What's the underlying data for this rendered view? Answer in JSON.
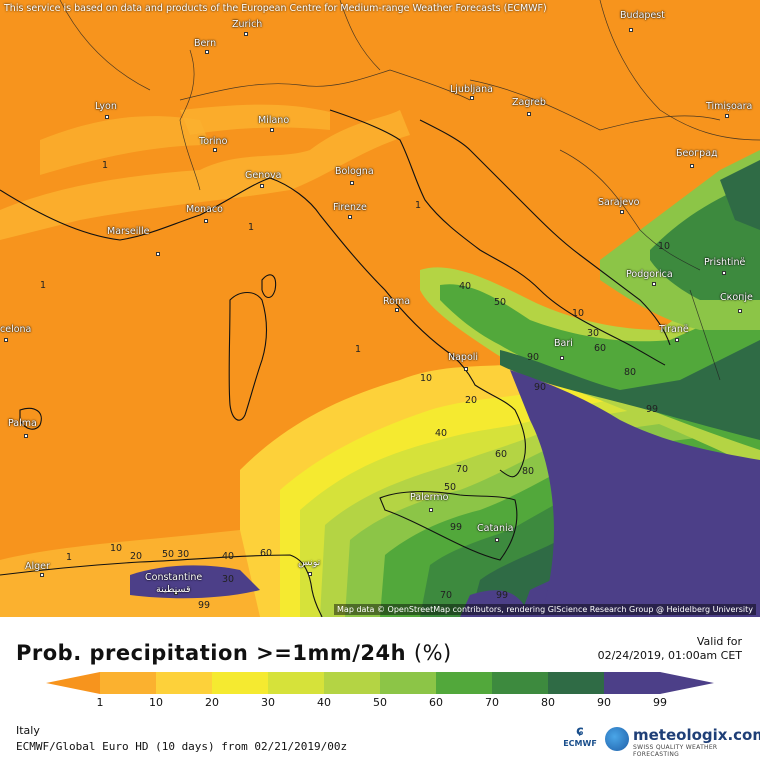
{
  "map": {
    "disclaimer": "This service is based on data and products of the European Centre for Medium-range Weather Forecasts (ECMWF)",
    "attribution": "Map data © OpenStreetMap contributors, rendering GIScience Research Group @ Heidelberg University",
    "cities": [
      {
        "name": "Budapest",
        "id": "budapest"
      },
      {
        "name": "Bern",
        "id": "bern"
      },
      {
        "name": "Zurich",
        "id": "zurich"
      },
      {
        "name": "Ljubljana",
        "id": "ljubljana"
      },
      {
        "name": "Zagreb",
        "id": "zagreb"
      },
      {
        "name": "Lyon",
        "id": "lyon"
      },
      {
        "name": "Milano",
        "id": "milano"
      },
      {
        "name": "Timișoara",
        "id": "timisoara"
      },
      {
        "name": "Torino",
        "id": "torino"
      },
      {
        "name": "Београд",
        "id": "beograd"
      },
      {
        "name": "Genova",
        "id": "genova"
      },
      {
        "name": "Bologna",
        "id": "bologna"
      },
      {
        "name": "Sarajevo",
        "id": "sarajevo"
      },
      {
        "name": "Monaco",
        "id": "monaco"
      },
      {
        "name": "Firenze",
        "id": "firenze"
      },
      {
        "name": "Marseille",
        "id": "marseille"
      },
      {
        "name": "Podgorica",
        "id": "podgorica"
      },
      {
        "name": "Prishtinë",
        "id": "prishtine"
      },
      {
        "name": "Скопје",
        "id": "skopje"
      },
      {
        "name": "Roma",
        "id": "roma"
      },
      {
        "name": "celona",
        "id": "barcelona"
      },
      {
        "name": "Tiranë",
        "id": "tirane"
      },
      {
        "name": "Bari",
        "id": "bari"
      },
      {
        "name": "Napoli",
        "id": "napoli"
      },
      {
        "name": "Palma",
        "id": "palma"
      },
      {
        "name": "Palermo",
        "id": "palermo"
      },
      {
        "name": "Catania",
        "id": "catania"
      },
      {
        "name": "Alger",
        "id": "alger"
      },
      {
        "name": "Constantine",
        "id": "constantine"
      },
      {
        "name": "قسنطينة",
        "id": "constantine-ar"
      },
      {
        "name": "تونس",
        "id": "tunis"
      }
    ],
    "contour_labels": [
      "1",
      "1",
      "1",
      "1",
      "1",
      "1",
      "10",
      "10",
      "20",
      "30",
      "40",
      "40",
      "50",
      "50",
      "60",
      "60",
      "70",
      "80",
      "90",
      "99",
      "99",
      "99",
      "10",
      "20",
      "50 30",
      "40",
      "60",
      "99",
      "80",
      "70",
      "90",
      "30",
      "10"
    ]
  },
  "legend": {
    "title": "Prob. precipitation >=1mm/24h",
    "unit": "(%)",
    "valid_label": "Valid for",
    "valid_time": "02/24/2019, 01:00am CET",
    "ticks": [
      "1",
      "10",
      "20",
      "30",
      "40",
      "50",
      "60",
      "70",
      "80",
      "90",
      "99"
    ],
    "colors": [
      "#f7941d",
      "#fbb12f",
      "#fdd13a",
      "#f5ea30",
      "#d6e23a",
      "#b4d444",
      "#8cc547",
      "#52a83b",
      "#3d8a3e",
      "#2f6b45",
      "#4c3f88"
    ]
  },
  "footer": {
    "region": "Italy",
    "model": "ECMWF/Global Euro HD (10 days) from 02/21/2019/00z"
  },
  "logos": {
    "ecmwf_text": "ECMWF",
    "meteologix_name": "meteologix.com",
    "meteologix_tagline": "SWISS QUALITY WEATHER FORECASTING"
  }
}
